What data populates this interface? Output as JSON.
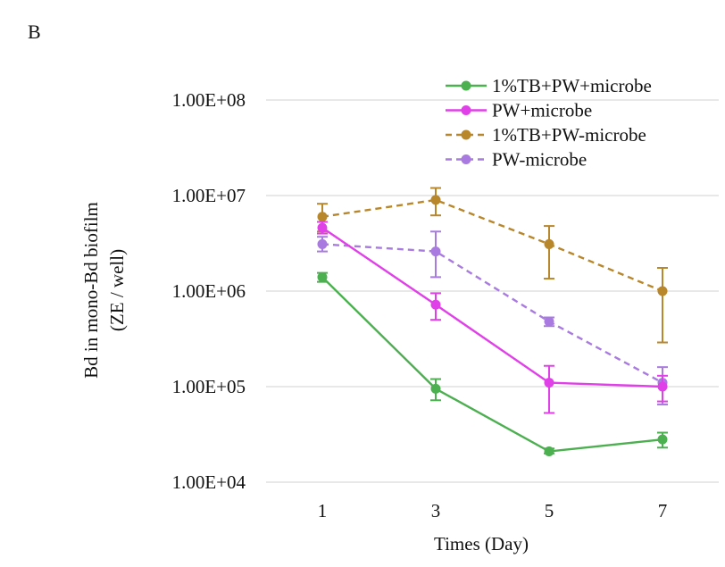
{
  "panel_label": "B",
  "chart_data": {
    "type": "line",
    "title": "",
    "xlabel": "Times (Day)",
    "ylabel_lines": [
      "Bd in mono-Bd biofilm",
      "(ZE / well)"
    ],
    "x": [
      1,
      3,
      5,
      7
    ],
    "x_tick_labels": [
      "1",
      "3",
      "5",
      "7"
    ],
    "y_scale": "log",
    "ylim": [
      10000,
      100000000
    ],
    "y_ticks": [
      10000,
      100000,
      1000000,
      10000000,
      100000000
    ],
    "y_tick_labels": [
      "1.00E+04",
      "1.00E+05",
      "1.00E+06",
      "1.00E+07",
      "1.00E+08"
    ],
    "grid": true,
    "legend_position": "top-right",
    "series": [
      {
        "name": "1%TB+PW+microbe",
        "color": "#4caf50",
        "dashed": false,
        "marker": "circle",
        "values": [
          1400000,
          95000,
          21000,
          28000
        ],
        "err_low": [
          1250000,
          72000,
          20000,
          23000
        ],
        "err_high": [
          1550000,
          120000,
          22500,
          33000
        ]
      },
      {
        "name": "PW+microbe",
        "color": "#e040e8",
        "dashed": false,
        "marker": "circle",
        "values": [
          4600000,
          720000,
          110000,
          100000
        ],
        "err_low": [
          4000000,
          500000,
          53000,
          70000
        ],
        "err_high": [
          5300000,
          950000,
          165000,
          130000
        ]
      },
      {
        "name": "1%TB+PW-microbe",
        "color": "#b8862b",
        "dashed": true,
        "marker": "circle",
        "values": [
          6000000,
          9000000,
          3100000,
          1000000
        ],
        "err_low": [
          4200000,
          6200000,
          1350000,
          290000
        ],
        "err_high": [
          8200000,
          12000000,
          4800000,
          1750000
        ]
      },
      {
        "name": "PW-microbe",
        "color": "#a97be0",
        "dashed": true,
        "marker": "circle",
        "values": [
          3100000,
          2600000,
          480000,
          110000
        ],
        "err_low": [
          2600000,
          1400000,
          430000,
          65000
        ],
        "err_high": [
          3700000,
          4200000,
          530000,
          160000
        ]
      }
    ]
  }
}
